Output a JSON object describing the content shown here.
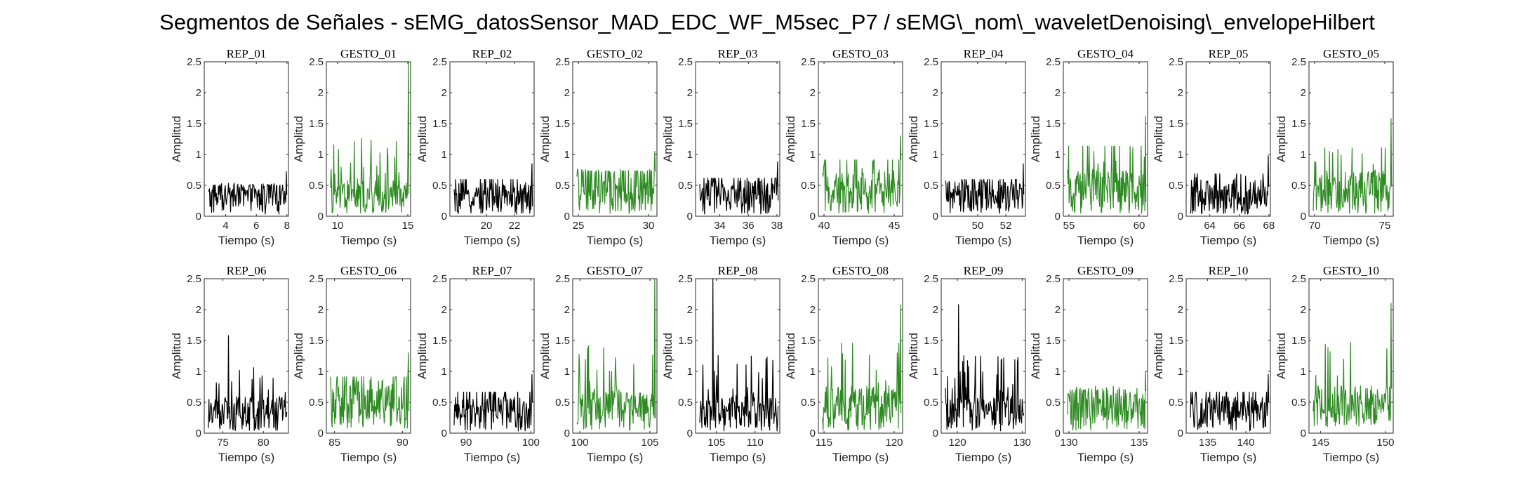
{
  "figure": {
    "title": "Segmentos de Señales - sEMG_datosSensor_MAD_EDC_WF_M5sec_P7 / sEMG\\_nom\\_waveletDenoising\\_envelopeHilbert"
  },
  "colors": {
    "rep": "#000000",
    "gesto": "#2e8b22"
  },
  "chart_data": [
    {
      "type": "line",
      "title": "REP_01",
      "xlabel": "Tiempo (s)",
      "ylabel": "Amplitud",
      "xlim": [
        2.6,
        8.1
      ],
      "ylim": [
        0,
        2.5
      ],
      "xticks": [
        4,
        6,
        8
      ],
      "yticks": [
        0,
        0.5,
        1,
        1.5,
        2,
        2.5
      ],
      "series_kind": "rep",
      "peak": 0.72,
      "base": 0.32
    },
    {
      "type": "line",
      "title": "GESTO_01",
      "xlabel": "Tiempo (s)",
      "ylabel": "Amplitud",
      "xlim": [
        9.2,
        15.2
      ],
      "ylim": [
        0,
        2.5
      ],
      "xticks": [
        10,
        15
      ],
      "yticks": [
        0,
        0.5,
        1,
        1.5,
        2,
        2.5
      ],
      "series_kind": "gesto",
      "peak": 2.5,
      "base": 0.35
    },
    {
      "type": "line",
      "title": "REP_02",
      "xlabel": "Tiempo (s)",
      "ylabel": "Amplitud",
      "xlim": [
        17.4,
        23.4
      ],
      "ylim": [
        0,
        2.5
      ],
      "xticks": [
        20,
        22
      ],
      "yticks": [
        0,
        0.5,
        1,
        1.5,
        2,
        2.5
      ],
      "series_kind": "rep",
      "peak": 0.85,
      "base": 0.32
    },
    {
      "type": "line",
      "title": "GESTO_02",
      "xlabel": "Tiempo (s)",
      "ylabel": "Amplitud",
      "xlim": [
        24.6,
        30.6
      ],
      "ylim": [
        0,
        2.5
      ],
      "xticks": [
        25,
        30
      ],
      "yticks": [
        0,
        0.5,
        1,
        1.5,
        2,
        2.5
      ],
      "series_kind": "gesto",
      "peak": 1.05,
      "base": 0.45
    },
    {
      "type": "line",
      "title": "REP_03",
      "xlabel": "Tiempo (s)",
      "ylabel": "Amplitud",
      "xlim": [
        32.3,
        38.2
      ],
      "ylim": [
        0,
        2.5
      ],
      "xticks": [
        34,
        36,
        38
      ],
      "yticks": [
        0,
        0.5,
        1,
        1.5,
        2,
        2.5
      ],
      "series_kind": "rep",
      "peak": 0.88,
      "base": 0.35
    },
    {
      "type": "line",
      "title": "GESTO_03",
      "xlabel": "Tiempo (s)",
      "ylabel": "Amplitud",
      "xlim": [
        39.6,
        45.6
      ],
      "ylim": [
        0,
        2.5
      ],
      "xticks": [
        40,
        45
      ],
      "yticks": [
        0,
        0.5,
        1,
        1.5,
        2,
        2.5
      ],
      "series_kind": "gesto",
      "peak": 1.3,
      "base": 0.45
    },
    {
      "type": "line",
      "title": "REP_04",
      "xlabel": "Tiempo (s)",
      "ylabel": "Amplitud",
      "xlim": [
        47.4,
        53.4
      ],
      "ylim": [
        0,
        2.5
      ],
      "xticks": [
        50,
        52
      ],
      "yticks": [
        0,
        0.5,
        1,
        1.5,
        2,
        2.5
      ],
      "series_kind": "rep",
      "peak": 0.85,
      "base": 0.35
    },
    {
      "type": "line",
      "title": "GESTO_04",
      "xlabel": "Tiempo (s)",
      "ylabel": "Amplitud",
      "xlim": [
        54.6,
        60.6
      ],
      "ylim": [
        0,
        2.5
      ],
      "xticks": [
        55,
        60
      ],
      "yticks": [
        0,
        0.5,
        1,
        1.5,
        2,
        2.5
      ],
      "series_kind": "gesto",
      "peak": 1.62,
      "base": 0.45
    },
    {
      "type": "line",
      "title": "REP_05",
      "xlabel": "Tiempo (s)",
      "ylabel": "Amplitud",
      "xlim": [
        62.4,
        68.1
      ],
      "ylim": [
        0,
        2.5
      ],
      "xticks": [
        64,
        66,
        68
      ],
      "yticks": [
        0,
        0.5,
        1,
        1.5,
        2,
        2.5
      ],
      "series_kind": "rep",
      "peak": 0.98,
      "base": 0.35
    },
    {
      "type": "line",
      "title": "GESTO_05",
      "xlabel": "Tiempo (s)",
      "ylabel": "Amplitud",
      "xlim": [
        69.6,
        75.6
      ],
      "ylim": [
        0,
        2.5
      ],
      "xticks": [
        70,
        75
      ],
      "yticks": [
        0,
        0.5,
        1,
        1.5,
        2,
        2.5
      ],
      "series_kind": "gesto",
      "peak": 1.58,
      "base": 0.45
    },
    {
      "type": "line",
      "title": "REP_06",
      "xlabel": "Tiempo (s)",
      "ylabel": "Amplitud",
      "xlim": [
        72.7,
        83.1
      ],
      "ylim": [
        0,
        2.5
      ],
      "xticks": [
        75,
        80
      ],
      "yticks": [
        0,
        0.5,
        1,
        1.5,
        2,
        2.5
      ],
      "series_kind": "rep",
      "peak": 1.58,
      "base": 0.35
    },
    {
      "type": "line",
      "title": "GESTO_06",
      "xlabel": "Tiempo (s)",
      "ylabel": "Amplitud",
      "xlim": [
        84.4,
        90.6
      ],
      "ylim": [
        0,
        2.5
      ],
      "xticks": [
        85,
        90
      ],
      "yticks": [
        0,
        0.5,
        1,
        1.5,
        2,
        2.5
      ],
      "series_kind": "gesto",
      "peak": 1.3,
      "base": 0.5
    },
    {
      "type": "line",
      "title": "REP_07",
      "xlabel": "Tiempo (s)",
      "ylabel": "Amplitud",
      "xlim": [
        87.5,
        100.5
      ],
      "ylim": [
        0,
        2.5
      ],
      "xticks": [
        90,
        100
      ],
      "yticks": [
        0,
        0.5,
        1,
        1.5,
        2,
        2.5
      ],
      "series_kind": "rep",
      "peak": 0.95,
      "base": 0.35
    },
    {
      "type": "line",
      "title": "GESTO_07",
      "xlabel": "Tiempo (s)",
      "ylabel": "Amplitud",
      "xlim": [
        99.5,
        105.5
      ],
      "ylim": [
        0,
        2.5
      ],
      "xticks": [
        100,
        105
      ],
      "yticks": [
        0,
        0.5,
        1,
        1.5,
        2,
        2.5
      ],
      "series_kind": "gesto",
      "peak": 2.5,
      "base": 0.4
    },
    {
      "type": "line",
      "title": "REP_08",
      "xlabel": "Tiempo (s)",
      "ylabel": "Amplitud",
      "xlim": [
        102.3,
        113.2
      ],
      "ylim": [
        0,
        2.5
      ],
      "xticks": [
        105,
        110
      ],
      "yticks": [
        0,
        0.5,
        1,
        1.5,
        2,
        2.5
      ],
      "series_kind": "rep",
      "peak": 2.5,
      "base": 0.35
    },
    {
      "type": "line",
      "title": "GESTO_08",
      "xlabel": "Tiempo (s)",
      "ylabel": "Amplitud",
      "xlim": [
        114.6,
        120.6
      ],
      "ylim": [
        0,
        2.5
      ],
      "xticks": [
        115,
        120
      ],
      "yticks": [
        0,
        0.5,
        1,
        1.5,
        2,
        2.5
      ],
      "series_kind": "gesto",
      "peak": 2.08,
      "base": 0.45
    },
    {
      "type": "line",
      "title": "REP_09",
      "xlabel": "Tiempo (s)",
      "ylabel": "Amplitud",
      "xlim": [
        117.5,
        130.5
      ],
      "ylim": [
        0,
        2.5
      ],
      "xticks": [
        120,
        130
      ],
      "yticks": [
        0,
        0.5,
        1,
        1.5,
        2,
        2.5
      ],
      "series_kind": "rep",
      "peak": 2.08,
      "base": 0.35
    },
    {
      "type": "line",
      "title": "GESTO_09",
      "xlabel": "Tiempo (s)",
      "ylabel": "Amplitud",
      "xlim": [
        129.6,
        135.6
      ],
      "ylim": [
        0,
        2.5
      ],
      "xticks": [
        130,
        135
      ],
      "yticks": [
        0,
        0.5,
        1,
        1.5,
        2,
        2.5
      ],
      "series_kind": "gesto",
      "peak": 1.0,
      "base": 0.45
    },
    {
      "type": "line",
      "title": "REP_10",
      "xlabel": "Tiempo (s)",
      "ylabel": "Amplitud",
      "xlim": [
        132.2,
        143.2
      ],
      "ylim": [
        0,
        2.5
      ],
      "xticks": [
        135,
        140
      ],
      "yticks": [
        0,
        0.5,
        1,
        1.5,
        2,
        2.5
      ],
      "series_kind": "rep",
      "peak": 0.95,
      "base": 0.35
    },
    {
      "type": "line",
      "title": "GESTO_10",
      "xlabel": "Tiempo (s)",
      "ylabel": "Amplitud",
      "xlim": [
        144.1,
        150.6
      ],
      "ylim": [
        0,
        2.5
      ],
      "xticks": [
        145,
        150
      ],
      "yticks": [
        0,
        0.5,
        1,
        1.5,
        2,
        2.5
      ],
      "series_kind": "gesto",
      "peak": 2.1,
      "base": 0.45
    }
  ]
}
